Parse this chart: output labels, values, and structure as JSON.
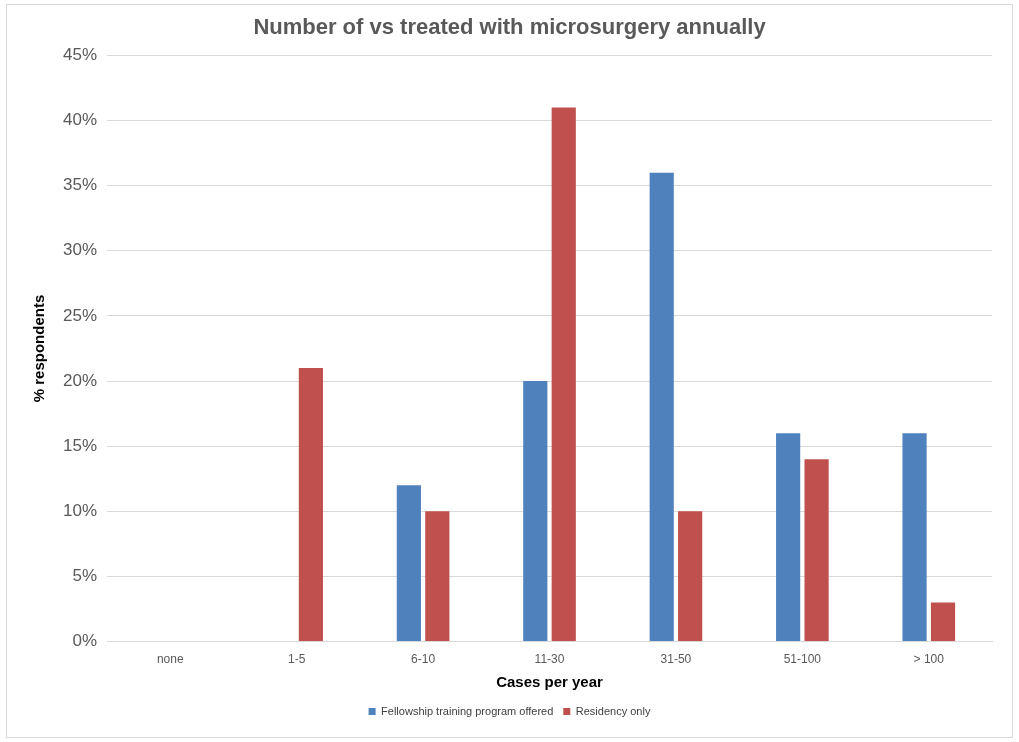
{
  "chart_data": {
    "type": "bar",
    "title": "Number of vs treated with microsurgery annually",
    "xlabel": "Cases per year",
    "ylabel": "% respondents",
    "categories": [
      "none",
      "1-5",
      "6-10",
      "11-30",
      "31-50",
      "51-100",
      "> 100"
    ],
    "series": [
      {
        "name": "Fellowship training program offered",
        "color": "#4f81bd",
        "values": [
          0,
          0,
          12,
          20,
          36,
          16,
          16
        ]
      },
      {
        "name": "Residency only",
        "color": "#c0504d",
        "values": [
          0,
          21,
          10,
          41,
          10,
          14,
          3
        ]
      }
    ],
    "ylim": [
      0,
      45
    ],
    "yticks": [
      {
        "value": 0,
        "label": "0%"
      },
      {
        "value": 5,
        "label": "5%"
      },
      {
        "value": 10,
        "label": "10%"
      },
      {
        "value": 15,
        "label": "15%"
      },
      {
        "value": 20,
        "label": "20%"
      },
      {
        "value": 25,
        "label": "25%"
      },
      {
        "value": 30,
        "label": "30%"
      },
      {
        "value": 35,
        "label": "35%"
      },
      {
        "value": 40,
        "label": "40%"
      },
      {
        "value": 45,
        "label": "45%"
      }
    ],
    "grid": "y",
    "legend": "bottom"
  }
}
